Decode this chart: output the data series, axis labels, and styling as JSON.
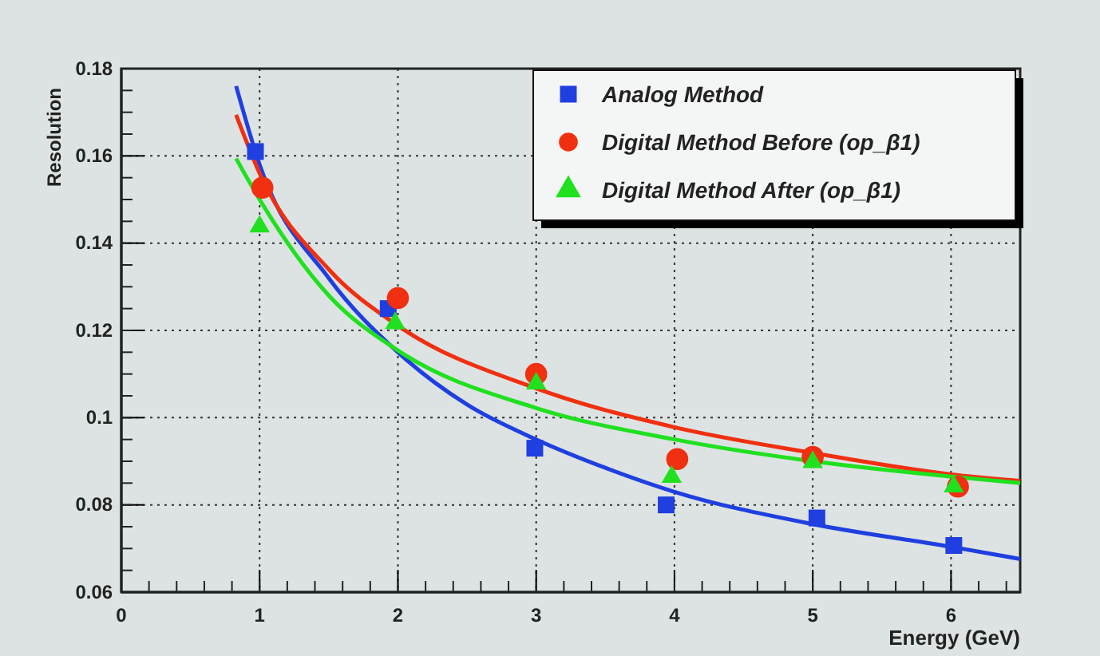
{
  "chart_data": {
    "type": "scatter",
    "xlabel": "Energy (GeV)",
    "ylabel": "Resolution",
    "xlim": [
      0,
      6.5
    ],
    "xticks": [
      0,
      1,
      2,
      3,
      4,
      5,
      6
    ],
    "ylim": [
      0.06,
      0.18
    ],
    "yticks": [
      0.06,
      0.08,
      0.1,
      0.12,
      0.14,
      0.16,
      0.18
    ],
    "grid": true,
    "legend": "top right",
    "series": [
      {
        "name": "Analog Method",
        "color": "#1f3fe0",
        "marker": "square",
        "x": [
          0.97,
          1.93,
          2.99,
          3.94,
          5.03,
          6.02
        ],
        "values": [
          0.161,
          0.125,
          0.093,
          0.08,
          0.077,
          0.0707
        ]
      },
      {
        "name": "Digital Method Before (op_β1)",
        "color": "#f03010",
        "marker": "circle",
        "x": [
          1.02,
          2.0,
          3.0,
          4.02,
          5.0,
          6.05
        ],
        "values": [
          0.1527,
          0.1274,
          0.11,
          0.0905,
          0.091,
          0.0842
        ]
      },
      {
        "name": "Digital Method After (op_β1)",
        "color": "#20e020",
        "marker": "triangle",
        "x": [
          1.0,
          1.98,
          3.0,
          3.98,
          5.0,
          6.02
        ],
        "values": [
          0.1438,
          0.1216,
          0.1078,
          0.0864,
          0.0898,
          0.0842
        ]
      },
      {
        "type": "line",
        "color": "#1f3fe0",
        "x": [
          0.83,
          1,
          1.5,
          2,
          2.5,
          3,
          3.5,
          4,
          5,
          6,
          6.5
        ],
        "values": [
          0.176,
          0.158,
          0.132,
          0.115,
          0.103,
          0.095,
          0.0885,
          0.083,
          0.0756,
          0.0704,
          0.0676
        ]
      },
      {
        "type": "line",
        "color": "#f03010",
        "x": [
          0.83,
          1,
          1.5,
          2,
          3,
          4,
          5,
          6,
          6.5
        ],
        "values": [
          0.1694,
          0.156,
          0.134,
          0.1211,
          0.1067,
          0.0978,
          0.0919,
          0.087,
          0.0855
        ]
      },
      {
        "type": "line",
        "color": "#20e020",
        "x": [
          0.83,
          1,
          1.5,
          2,
          3,
          4,
          5,
          6,
          6.5
        ],
        "values": [
          0.1594,
          0.15,
          0.128,
          0.1154,
          0.1022,
          0.095,
          0.09,
          0.0865,
          0.085
        ]
      }
    ]
  }
}
